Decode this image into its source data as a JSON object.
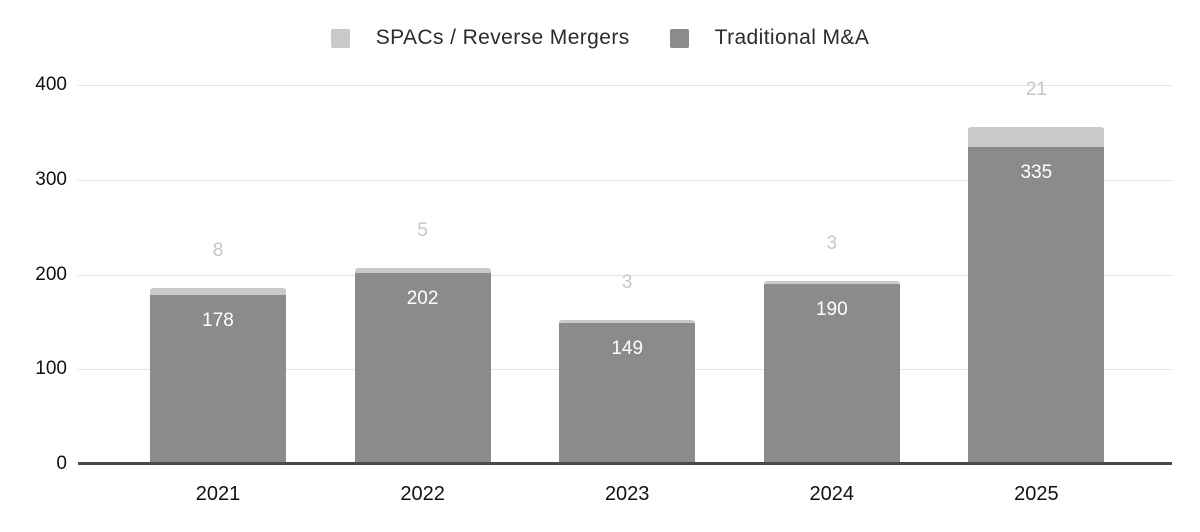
{
  "chart_data": {
    "type": "bar",
    "stacked": true,
    "title": "",
    "xlabel": "",
    "ylabel": "",
    "categories": [
      "2021",
      "2022",
      "2023",
      "2024",
      "2025"
    ],
    "series": [
      {
        "name": "SPACs / Reverse Mergers",
        "color": "#c9c9c9",
        "label_color": "#c6c6c6",
        "label_position": "above",
        "values": [
          8,
          5,
          3,
          3,
          21
        ]
      },
      {
        "name": "Traditional M&A",
        "color": "#8b8b8b",
        "label_color": "#ffffff",
        "label_position": "inside",
        "values": [
          178,
          202,
          149,
          190,
          335
        ]
      }
    ],
    "stack_order_bottom_to_top": [
      "Traditional M&A",
      "SPACs / Reverse Mergers"
    ],
    "totals": [
      186,
      207,
      152,
      193,
      356
    ],
    "ylim": [
      0,
      400
    ],
    "yticks": [
      0,
      100,
      200,
      300,
      400
    ],
    "grid": true,
    "legend_position": "top",
    "colors": {
      "background": "#ffffff",
      "gridline": "#e4e4e4",
      "axis_line": "#4a4a4a",
      "tick_text": "#111111",
      "legend_text": "#2b2b2b"
    }
  }
}
